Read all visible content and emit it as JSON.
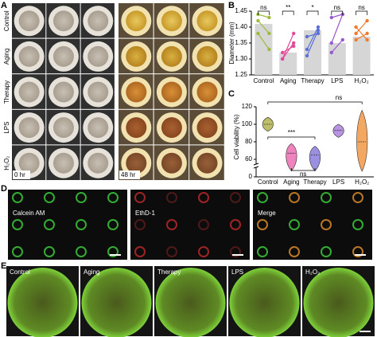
{
  "panels": {
    "A": {
      "letter": "A",
      "rows": [
        "Control",
        "Aging",
        "Therapy",
        "LPS",
        "H₂O₂"
      ],
      "time_left": "0 hr",
      "time_right": "48 hr"
    },
    "D": {
      "letter": "D",
      "images": [
        "Calcein AM",
        "EthD-1",
        "Merge"
      ]
    },
    "E": {
      "letter": "E",
      "images": [
        "Control",
        "Aging",
        "Therapy",
        "LPS",
        "H₂O₂"
      ]
    }
  },
  "chart_data": [
    {
      "type": "bar",
      "letter": "B",
      "y_label": "Diameter (mm)",
      "categories": [
        "Control",
        "Aging",
        "Therapy",
        "LPS",
        "H₂O₂"
      ],
      "values": [
        1.41,
        1.32,
        1.39,
        1.35,
        1.37
      ],
      "color": "#d6d6d6",
      "replicates": [
        [
          [
            1.44,
            1.43
          ],
          [
            1.42,
            1.38
          ],
          [
            1.38,
            1.33
          ]
        ],
        [
          [
            1.3,
            1.38
          ],
          [
            1.32,
            1.34
          ],
          [
            1.3,
            1.35
          ]
        ],
        [
          [
            1.31,
            1.39
          ],
          [
            1.33,
            1.4
          ],
          [
            1.37,
            1.38
          ]
        ],
        [
          [
            1.43,
            1.44
          ],
          [
            1.35,
            1.44
          ],
          [
            1.32,
            1.36
          ]
        ],
        [
          [
            1.38,
            1.42
          ],
          [
            1.4,
            1.36
          ],
          [
            1.36,
            1.38
          ]
        ]
      ],
      "colors": [
        "#9dbb3c",
        "#e2489c",
        "#5a70d8",
        "#9a58cf",
        "#f07a2c"
      ],
      "significance": [
        "ns",
        "**",
        "*",
        "ns",
        "ns"
      ],
      "ylim": [
        1.25,
        1.45
      ],
      "yticks": [
        1.25,
        {
          "value": 1.3,
          "label": "1.30"
        },
        1.35,
        {
          "value": 1.4,
          "label": "1.40"
        },
        1.45
      ]
    },
    {
      "type": "violin",
      "letter": "C",
      "y_label": "Cell viability (%)",
      "categories": [
        "Control",
        "Aging",
        "Therapy",
        "LPS",
        "H₂O₂"
      ],
      "medians": [
        100,
        67,
        65,
        93,
        80
      ],
      "mins": [
        92,
        55,
        55,
        85,
        52
      ],
      "maxs": [
        108,
        78,
        75,
        100,
        116
      ],
      "colors": [
        "#a8a838",
        "#e85aa8",
        "#7a6ad8",
        "#a070d8",
        "#f08a2c"
      ],
      "significance": [
        "***",
        "ns",
        "ns"
      ],
      "ylim": [
        0,
        120
      ],
      "yticks": [
        0,
        60,
        80,
        100,
        120
      ]
    }
  ]
}
